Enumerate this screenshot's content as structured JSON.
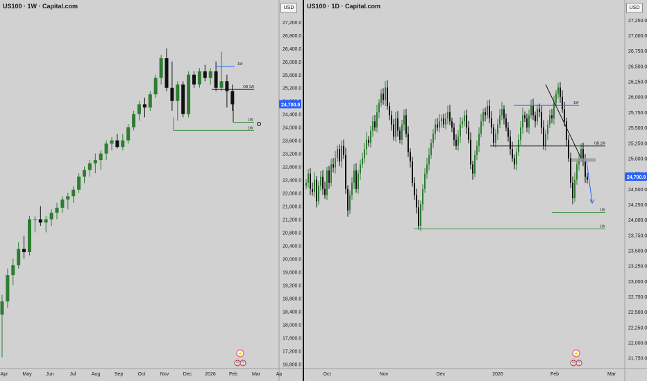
{
  "colors": {
    "bull": "#2e7d32",
    "bear": "#111111",
    "blue": "#2962ff",
    "green": "#3a8f3a",
    "price_tag": "#2962ff"
  },
  "chart_data": [
    {
      "type": "candlestick",
      "title": "US100 · 1W · Capital.com",
      "currency_button": "USD",
      "price_tag": "24,700.9",
      "y_ticks": [
        "27,200.0",
        "26,800.0",
        "26,400.0",
        "26,000.0",
        "25,600.0",
        "25,200.0",
        "24,800.0",
        "24,400.0",
        "24,000.0",
        "23,600.0",
        "23,200.0",
        "22,800.0",
        "22,400.0",
        "22,000.0",
        "21,600.0",
        "21,200.0",
        "20,800.0",
        "20,400.0",
        "20,000.0",
        "19,600.0",
        "19,200.0",
        "18,800.0",
        "18,400.0",
        "18,000.0",
        "17,600.0",
        "17,200.0",
        "16,800.0"
      ],
      "ylim": [
        16700,
        27450
      ],
      "x_ticks": [
        "Apr",
        "May",
        "Jun",
        "Jul",
        "Aug",
        "Sep",
        "Oct",
        "Nov",
        "Dec",
        "2026",
        "Feb",
        "Mar",
        "Ap"
      ],
      "levels": [
        {
          "label": "1W",
          "price": 25850,
          "color": "blue"
        },
        {
          "label": "OB 1W",
          "price": 25150,
          "color": "black"
        },
        {
          "label": "1W",
          "price": 24150,
          "color": "green"
        },
        {
          "label": "1W",
          "price": 23900,
          "color": "green"
        }
      ],
      "ohlc": [
        [
          18300,
          18900,
          17000,
          18700
        ],
        [
          18700,
          19700,
          18500,
          19500
        ],
        [
          19500,
          20000,
          19200,
          19800
        ],
        [
          19800,
          20500,
          19700,
          20300
        ],
        [
          20300,
          20700,
          20000,
          20200
        ],
        [
          20200,
          21300,
          20100,
          21200
        ],
        [
          21200,
          21300,
          20800,
          21200
        ],
        [
          21200,
          21600,
          21000,
          21100
        ],
        [
          21100,
          21300,
          20800,
          21200
        ],
        [
          21200,
          21500,
          21000,
          21400
        ],
        [
          21400,
          21700,
          21200,
          21550
        ],
        [
          21550,
          21900,
          21400,
          21800
        ],
        [
          21800,
          22000,
          21500,
          21900
        ],
        [
          21900,
          22200,
          21700,
          22100
        ],
        [
          22100,
          22600,
          22000,
          22500
        ],
        [
          22500,
          22800,
          22300,
          22700
        ],
        [
          22700,
          23000,
          22500,
          22900
        ],
        [
          22900,
          23200,
          22600,
          23000
        ],
        [
          23000,
          23300,
          22700,
          23200
        ],
        [
          23200,
          23600,
          23000,
          23500
        ],
        [
          23500,
          23700,
          23300,
          23600
        ],
        [
          23600,
          23800,
          23350,
          23400
        ],
        [
          23400,
          23800,
          23300,
          23600
        ],
        [
          23600,
          24100,
          23500,
          24000
        ],
        [
          24000,
          24500,
          23900,
          24400
        ],
        [
          24400,
          24800,
          24200,
          24700
        ],
        [
          24700,
          24900,
          24300,
          24600
        ],
        [
          24600,
          25100,
          24500,
          25000
        ],
        [
          25000,
          25600,
          24900,
          25500
        ],
        [
          25500,
          26200,
          25300,
          26100
        ],
        [
          26100,
          26400,
          25100,
          25200
        ],
        [
          25200,
          26000,
          24500,
          24800
        ],
        [
          24800,
          25400,
          24200,
          25300
        ],
        [
          25300,
          25400,
          24300,
          24400
        ],
        [
          24400,
          25700,
          24300,
          25600
        ],
        [
          25600,
          25700,
          25200,
          25300
        ],
        [
          25300,
          25800,
          25200,
          25700
        ],
        [
          25700,
          25900,
          25400,
          25500
        ],
        [
          25500,
          25800,
          25300,
          25700
        ],
        [
          25700,
          26000,
          25100,
          25200
        ],
        [
          25200,
          26300,
          25100,
          25400
        ],
        [
          25400,
          25600,
          24600,
          25100
        ],
        [
          25100,
          25300,
          24500,
          24700
        ]
      ]
    },
    {
      "type": "candlestick",
      "title": "US100 · 1D · Capital.com",
      "currency_button": "USD",
      "price_tag": "24,700.9",
      "y_ticks": [
        "27,250.0",
        "27,000.0",
        "26,750.0",
        "26,500.0",
        "26,250.0",
        "26,000.0",
        "25,750.0",
        "25,500.0",
        "25,250.0",
        "25,000.0",
        "24,750.0",
        "24,500.0",
        "24,250.0",
        "24,000.0",
        "23,750.0",
        "23,500.0",
        "23,250.0",
        "23,000.0",
        "22,750.0",
        "22,500.0",
        "22,250.0",
        "22,000.0",
        "21,750.0"
      ],
      "ylim": [
        21600,
        27350
      ],
      "x_ticks": [
        "Oct",
        "Nov",
        "Dec",
        "2026",
        "Feb",
        "Mar"
      ],
      "levels": [
        {
          "label": "1W",
          "price": 25860,
          "color": "blue"
        },
        {
          "label": "OB 1W",
          "price": 25200,
          "color": "black"
        },
        {
          "label": "1W",
          "price": 24120,
          "color": "green"
        },
        {
          "label": "1W",
          "price": 23850,
          "color": "green"
        }
      ],
      "trendline": [
        [
          26200,
          24980
        ]
      ],
      "projection": {
        "from": 24980,
        "to": 24250
      },
      "closes": [
        24600,
        24750,
        24500,
        24450,
        24650,
        24300,
        24550,
        24700,
        24500,
        24400,
        24800,
        24600,
        24900,
        24850,
        25000,
        25150,
        24950,
        25200,
        25050,
        24500,
        24150,
        24400,
        24600,
        24800,
        24500,
        24750,
        24900,
        25000,
        25150,
        25300,
        25250,
        25450,
        25600,
        25500,
        25750,
        25900,
        26050,
        25950,
        26150,
        25850,
        25700,
        25550,
        25350,
        25650,
        25450,
        25300,
        25550,
        25700,
        25400,
        25100,
        24950,
        24600,
        24400,
        24200,
        23900,
        24250,
        24500,
        24750,
        24900,
        25050,
        25250,
        25400,
        25550,
        25500,
        25600,
        25650,
        25550,
        25650,
        25750,
        25600,
        25500,
        25300,
        25200,
        25350,
        25550,
        25600,
        25700,
        25500,
        25300,
        24900,
        24750,
        25050,
        25200,
        25400,
        25600,
        25750,
        25700,
        25850,
        25650,
        25500,
        25250,
        25400,
        25550,
        25700,
        25800,
        25650,
        25500,
        25350,
        25150,
        25000,
        24900,
        25100,
        25300,
        25500,
        25700,
        25650,
        25500,
        25700,
        25850,
        25700,
        25600,
        25800,
        25750,
        25500,
        25200,
        25400,
        25550,
        25700,
        25650,
        25900,
        26050,
        26150,
        26000,
        25800,
        25600,
        25300,
        25000,
        24600,
        24350,
        24650,
        24900,
        25000,
        25150,
        24950,
        24700,
        24650
      ]
    }
  ],
  "right_chart_icons": {
    "left_flash_icon": "flash-icon",
    "left_flag_icon": "us-flag-icon",
    "right_flash_icon": "flash-icon",
    "right_flag_icon": "us-flag-icon"
  }
}
